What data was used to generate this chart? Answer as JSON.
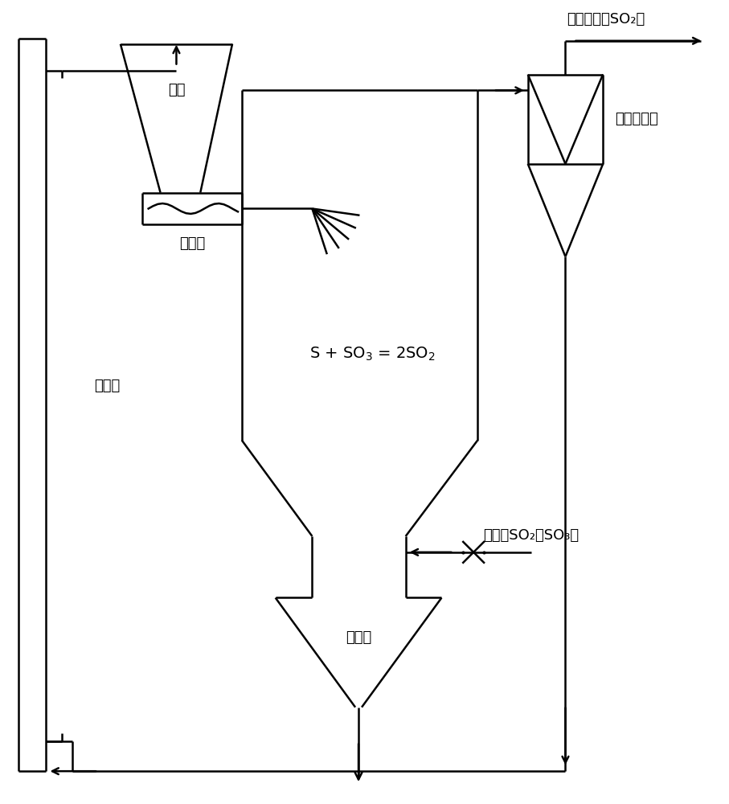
{
  "bg_color": "#ffffff",
  "lc": "#000000",
  "lw": 1.8,
  "fs": 13,
  "labels": {
    "liaocang": "料仓",
    "feeder": "给料机",
    "elevator": "提升机",
    "cyclone": "旋风收尘器",
    "collector": "集料仓",
    "flue_in": "烟气（SO₂、SO₃）",
    "flue_out": "制酸烟气（SO₂）"
  },
  "reaction": "S + SO$_3$ = 2SO$_2$"
}
